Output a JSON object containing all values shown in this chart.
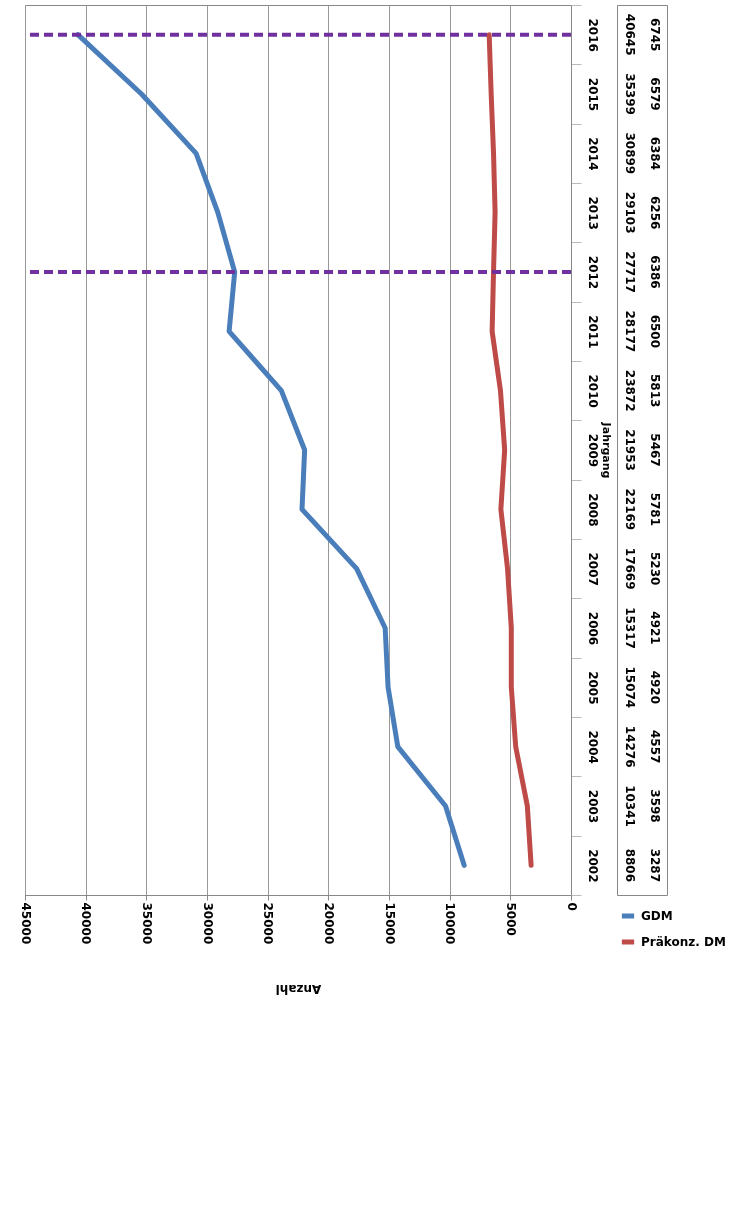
{
  "chart_data": {
    "type": "line",
    "orientation": "horizontal",
    "xlabel": "Anzahl",
    "ylabel": "Jahrgang",
    "categories": [
      "2016",
      "2015",
      "2014",
      "2013",
      "2012",
      "2011",
      "2010",
      "2009",
      "2008",
      "2007",
      "2006",
      "2005",
      "2004",
      "2003",
      "2002"
    ],
    "series": [
      {
        "name": "GDM",
        "color": "#4a7ebb",
        "values": [
          40645,
          35399,
          30899,
          29103,
          27717,
          28177,
          23872,
          21953,
          22169,
          17669,
          15317,
          15074,
          14276,
          10341,
          8806
        ]
      },
      {
        "name": "Präkonz. DM",
        "color": "#be4b48",
        "values": [
          6745,
          6579,
          6384,
          6256,
          6386,
          6500,
          5813,
          5467,
          5781,
          5230,
          4921,
          4920,
          4557,
          3598,
          3287
        ]
      }
    ],
    "xlim": [
      45000,
      0
    ],
    "xticks": [
      45000,
      40000,
      35000,
      30000,
      25000,
      20000,
      15000,
      10000,
      5000,
      0
    ],
    "grid": "x",
    "legend": "bottom right",
    "data_labels": true,
    "line_style": "solid",
    "ref_lines": [
      {
        "axis": "y",
        "value": "2016",
        "color": "#7030a0",
        "line_style": "dashed"
      },
      {
        "axis": "y",
        "value": "2012",
        "color": "#7030a0",
        "line_style": "dashed"
      }
    ]
  }
}
